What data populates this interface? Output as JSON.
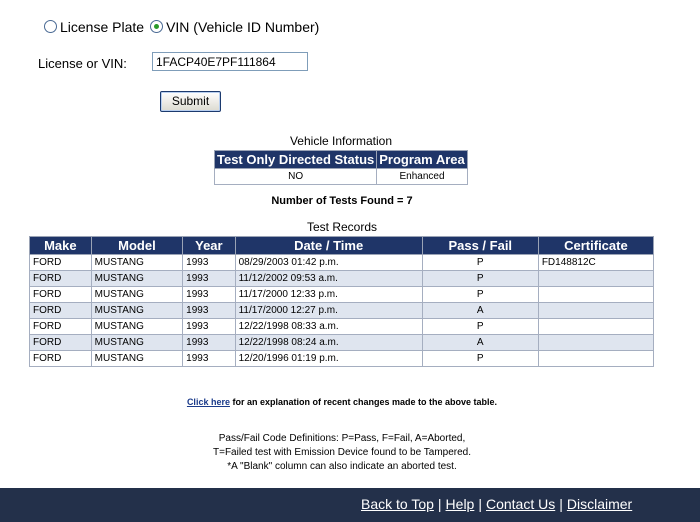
{
  "search_form": {
    "options": [
      {
        "label": "License Plate",
        "selected": false
      },
      {
        "label": "VIN (Vehicle ID Number)",
        "selected": true
      }
    ],
    "field_label": "License or VIN:",
    "field_value": "1FACP40E7PF111864",
    "submit": "Submit"
  },
  "vehicle_info": {
    "title": "Vehicle Information",
    "headers": [
      "Test Only Directed Status",
      "Program Area"
    ],
    "rows": [
      [
        "NO",
        "Enhanced"
      ]
    ]
  },
  "tests_found": "Number of Tests Found = 7",
  "test_records": {
    "title": "Test Records",
    "headers": [
      "Make",
      "Model",
      "Year",
      "Date / Time",
      "Pass / Fail",
      "Certificate"
    ],
    "rows": [
      [
        "FORD",
        "MUSTANG",
        "1993",
        "08/29/2003 01:42 p.m.",
        "P",
        "FD148812C"
      ],
      [
        "FORD",
        "MUSTANG",
        "1993",
        "11/12/2002 09:53 a.m.",
        "P",
        null
      ],
      [
        "FORD",
        "MUSTANG",
        "1993",
        "11/17/2000 12:33 p.m.",
        "P",
        null
      ],
      [
        "FORD",
        "MUSTANG",
        "1993",
        "11/17/2000 12:27 p.m.",
        "A",
        null
      ],
      [
        "FORD",
        "MUSTANG",
        "1993",
        "12/22/1998 08:33 a.m.",
        "P",
        null
      ],
      [
        "FORD",
        "MUSTANG",
        "1993",
        "12/22/1998 08:24 a.m.",
        "A",
        null
      ],
      [
        "FORD",
        "MUSTANG",
        "1993",
        "12/20/1996 01:19 p.m.",
        "P",
        null
      ]
    ]
  },
  "note": {
    "link": "Click here",
    "text": "for an explanation of recent changes made to the above table."
  },
  "definitions": [
    "Pass/Fail Code Definitions: P=Pass, F=Fail, A=Aborted,",
    "T=Failed test with Emission Device found to be Tampered.",
    "*A \"Blank\" column can also indicate an aborted test."
  ],
  "footer": {
    "links": [
      "Back to Top",
      "Help",
      "Contact Us",
      "Disclaimer"
    ],
    "separator": "|"
  }
}
